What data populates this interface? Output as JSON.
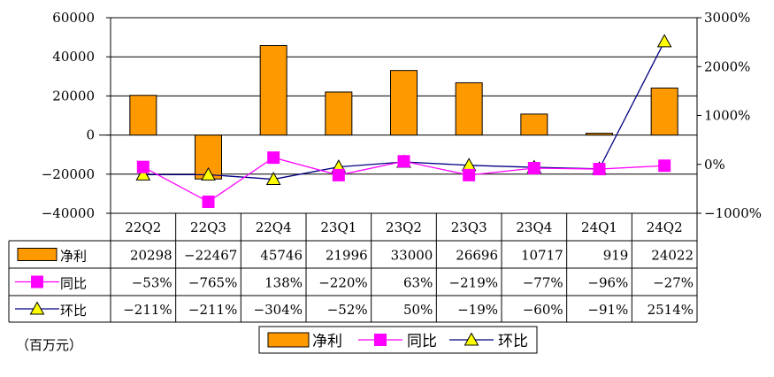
{
  "chart_data": {
    "type": "bar",
    "categories": [
      "22Q2",
      "22Q3",
      "22Q4",
      "23Q1",
      "23Q2",
      "23Q3",
      "23Q4",
      "24Q1",
      "24Q2"
    ],
    "series": [
      {
        "name": "净利",
        "type": "bar",
        "axis": "left",
        "color": "#FF9900",
        "values": [
          20298,
          -22467,
          45746,
          21996,
          33000,
          26696,
          10717,
          919,
          24022
        ],
        "labels": [
          "20298",
          "-22467",
          "45746",
          "21996",
          "33000",
          "26696",
          "10717",
          "919",
          "24022"
        ]
      },
      {
        "name": "同比",
        "type": "line",
        "axis": "right",
        "color": "#FF00FF",
        "marker": "square",
        "values": [
          -53,
          -765,
          138,
          -220,
          63,
          -219,
          -77,
          -96,
          -27
        ],
        "labels": [
          "-53%",
          "-765%",
          "138%",
          "-220%",
          "63%",
          "-219%",
          "-77%",
          "-96%",
          "-27%"
        ]
      },
      {
        "name": "环比",
        "type": "line",
        "axis": "right",
        "color": "#000080",
        "marker": "triangle",
        "marker_color": "#FFFF00",
        "values": [
          -211,
          -211,
          -304,
          -52,
          50,
          -19,
          -60,
          -91,
          2514
        ],
        "labels": [
          "-211%",
          "-211%",
          "-304%",
          "-52%",
          "50%",
          "-19%",
          "-60%",
          "-91%",
          "2514%"
        ]
      }
    ],
    "left_axis": {
      "min": -40000,
      "max": 60000,
      "ticks": [
        60000,
        40000,
        20000,
        0,
        -20000,
        -40000
      ]
    },
    "right_axis": {
      "min": -1000,
      "max": 3000,
      "ticks": [
        "3000%",
        "2000%",
        "1000%",
        "0%",
        "-1000%"
      ],
      "tick_values": [
        3000,
        2000,
        1000,
        0,
        -1000
      ]
    },
    "unit_label": "（百万元）",
    "grid": true,
    "legend_position": "bottom",
    "data_table": true
  }
}
